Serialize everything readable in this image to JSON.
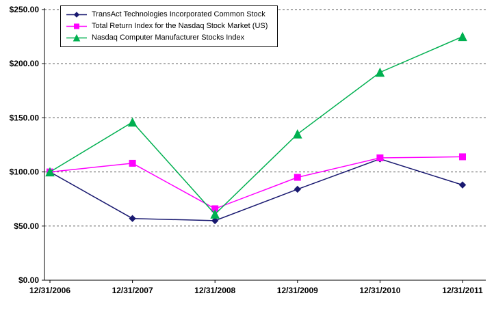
{
  "chart_data": {
    "type": "line",
    "title": "",
    "x_labels": [
      "12/31/2006",
      "12/31/2007",
      "12/31/2008",
      "12/31/2009",
      "12/31/2010",
      "12/31/2011"
    ],
    "y_tick_labels": [
      "$0.00",
      "$50.00",
      "$100.00",
      "$150.00",
      "$200.00",
      "$250.00"
    ],
    "y_tick_values": [
      0,
      50,
      100,
      150,
      200,
      250
    ],
    "ylim": [
      0,
      250
    ],
    "grid": "horizontal-dashed",
    "legend_position": "top-left",
    "series": [
      {
        "name": "TransAct Technologies Incorporated Common Stock",
        "color": "#191970",
        "marker": "diamond",
        "values": [
          100,
          57,
          55,
          84,
          112,
          88
        ]
      },
      {
        "name": "Total Return Index for the Nasdaq Stock Market (US)",
        "color": "#FF00FF",
        "marker": "square",
        "values": [
          100,
          108,
          66,
          95,
          113,
          114
        ]
      },
      {
        "name": "Nasdaq Computer Manufacturer Stocks Index",
        "color": "#00B050",
        "marker": "triangle",
        "values": [
          100,
          146,
          61,
          135,
          192,
          225
        ]
      }
    ]
  }
}
